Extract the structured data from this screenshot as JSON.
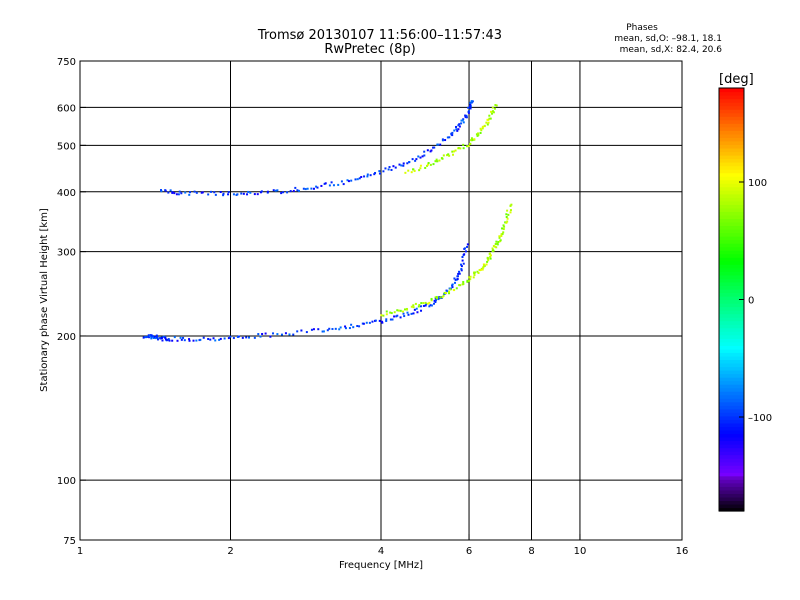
{
  "chart_data": {
    "type": "scatter",
    "title": "Tromsø 20130107 11:56:00–11:57:43",
    "subtitle": "RwPretec (8p)",
    "xlabel": "Frequency [MHz]",
    "ylabel": "Stationary phase Virtual Height [km]",
    "x_scale": "log",
    "y_scale": "log",
    "xlim": [
      1,
      16
    ],
    "ylim": [
      75,
      750
    ],
    "x_ticks": [
      1,
      2,
      4,
      6,
      8,
      10,
      16
    ],
    "y_ticks": [
      75,
      100,
      200,
      300,
      400,
      500,
      600,
      750
    ],
    "grid_x": [
      2,
      4,
      6,
      8,
      10
    ],
    "grid_y": [
      100,
      200,
      300,
      400,
      500,
      600
    ],
    "grid": true,
    "phases": {
      "heading": "Phases",
      "line_o": "mean, sd,O: –98.1, 18.1",
      "line_x": "mean, sd,X:  82.4, 20.6"
    },
    "colorbar": {
      "label": "[deg]",
      "range": [
        -180,
        180
      ],
      "tick_values": [
        100,
        0,
        -100
      ],
      "tick_labels": [
        "100",
        "0",
        "–100"
      ]
    },
    "traces": [
      {
        "note": "F2 O-mode trace",
        "phase": -100,
        "x": [
          1.35,
          1.4,
          1.45,
          1.5,
          1.7,
          2,
          2.4,
          3,
          3.5,
          4,
          4.5,
          5,
          5.3,
          5.6,
          5.8,
          5.95
        ],
        "y": [
          200,
          199,
          198,
          197,
          197,
          198,
          201,
          205,
          210,
          214,
          222,
          232,
          242,
          258,
          278,
          315
        ]
      },
      {
        "note": "F2 X-mode trace",
        "phase": 82,
        "x": [
          4,
          4.5,
          5,
          5.5,
          6,
          6.3,
          6.5,
          6.7,
          6.9,
          7.1,
          7.3
        ],
        "y": [
          222,
          228,
          236,
          248,
          262,
          274,
          284,
          300,
          318,
          345,
          380
        ]
      },
      {
        "note": "2F O-mode trace",
        "phase": -100,
        "x": [
          1.45,
          1.6,
          1.9,
          2.2,
          2.6,
          3,
          3.5,
          4,
          4.5,
          5,
          5.5,
          5.8,
          6,
          6.1
        ],
        "y": [
          400,
          398,
          396,
          397,
          402,
          410,
          422,
          440,
          460,
          486,
          525,
          555,
          590,
          625
        ]
      },
      {
        "note": "2F X-mode trace",
        "phase": 82,
        "x": [
          4.5,
          5,
          5.5,
          6,
          6.3,
          6.6,
          6.8
        ],
        "y": [
          440,
          455,
          478,
          505,
          530,
          570,
          610
        ]
      }
    ]
  }
}
